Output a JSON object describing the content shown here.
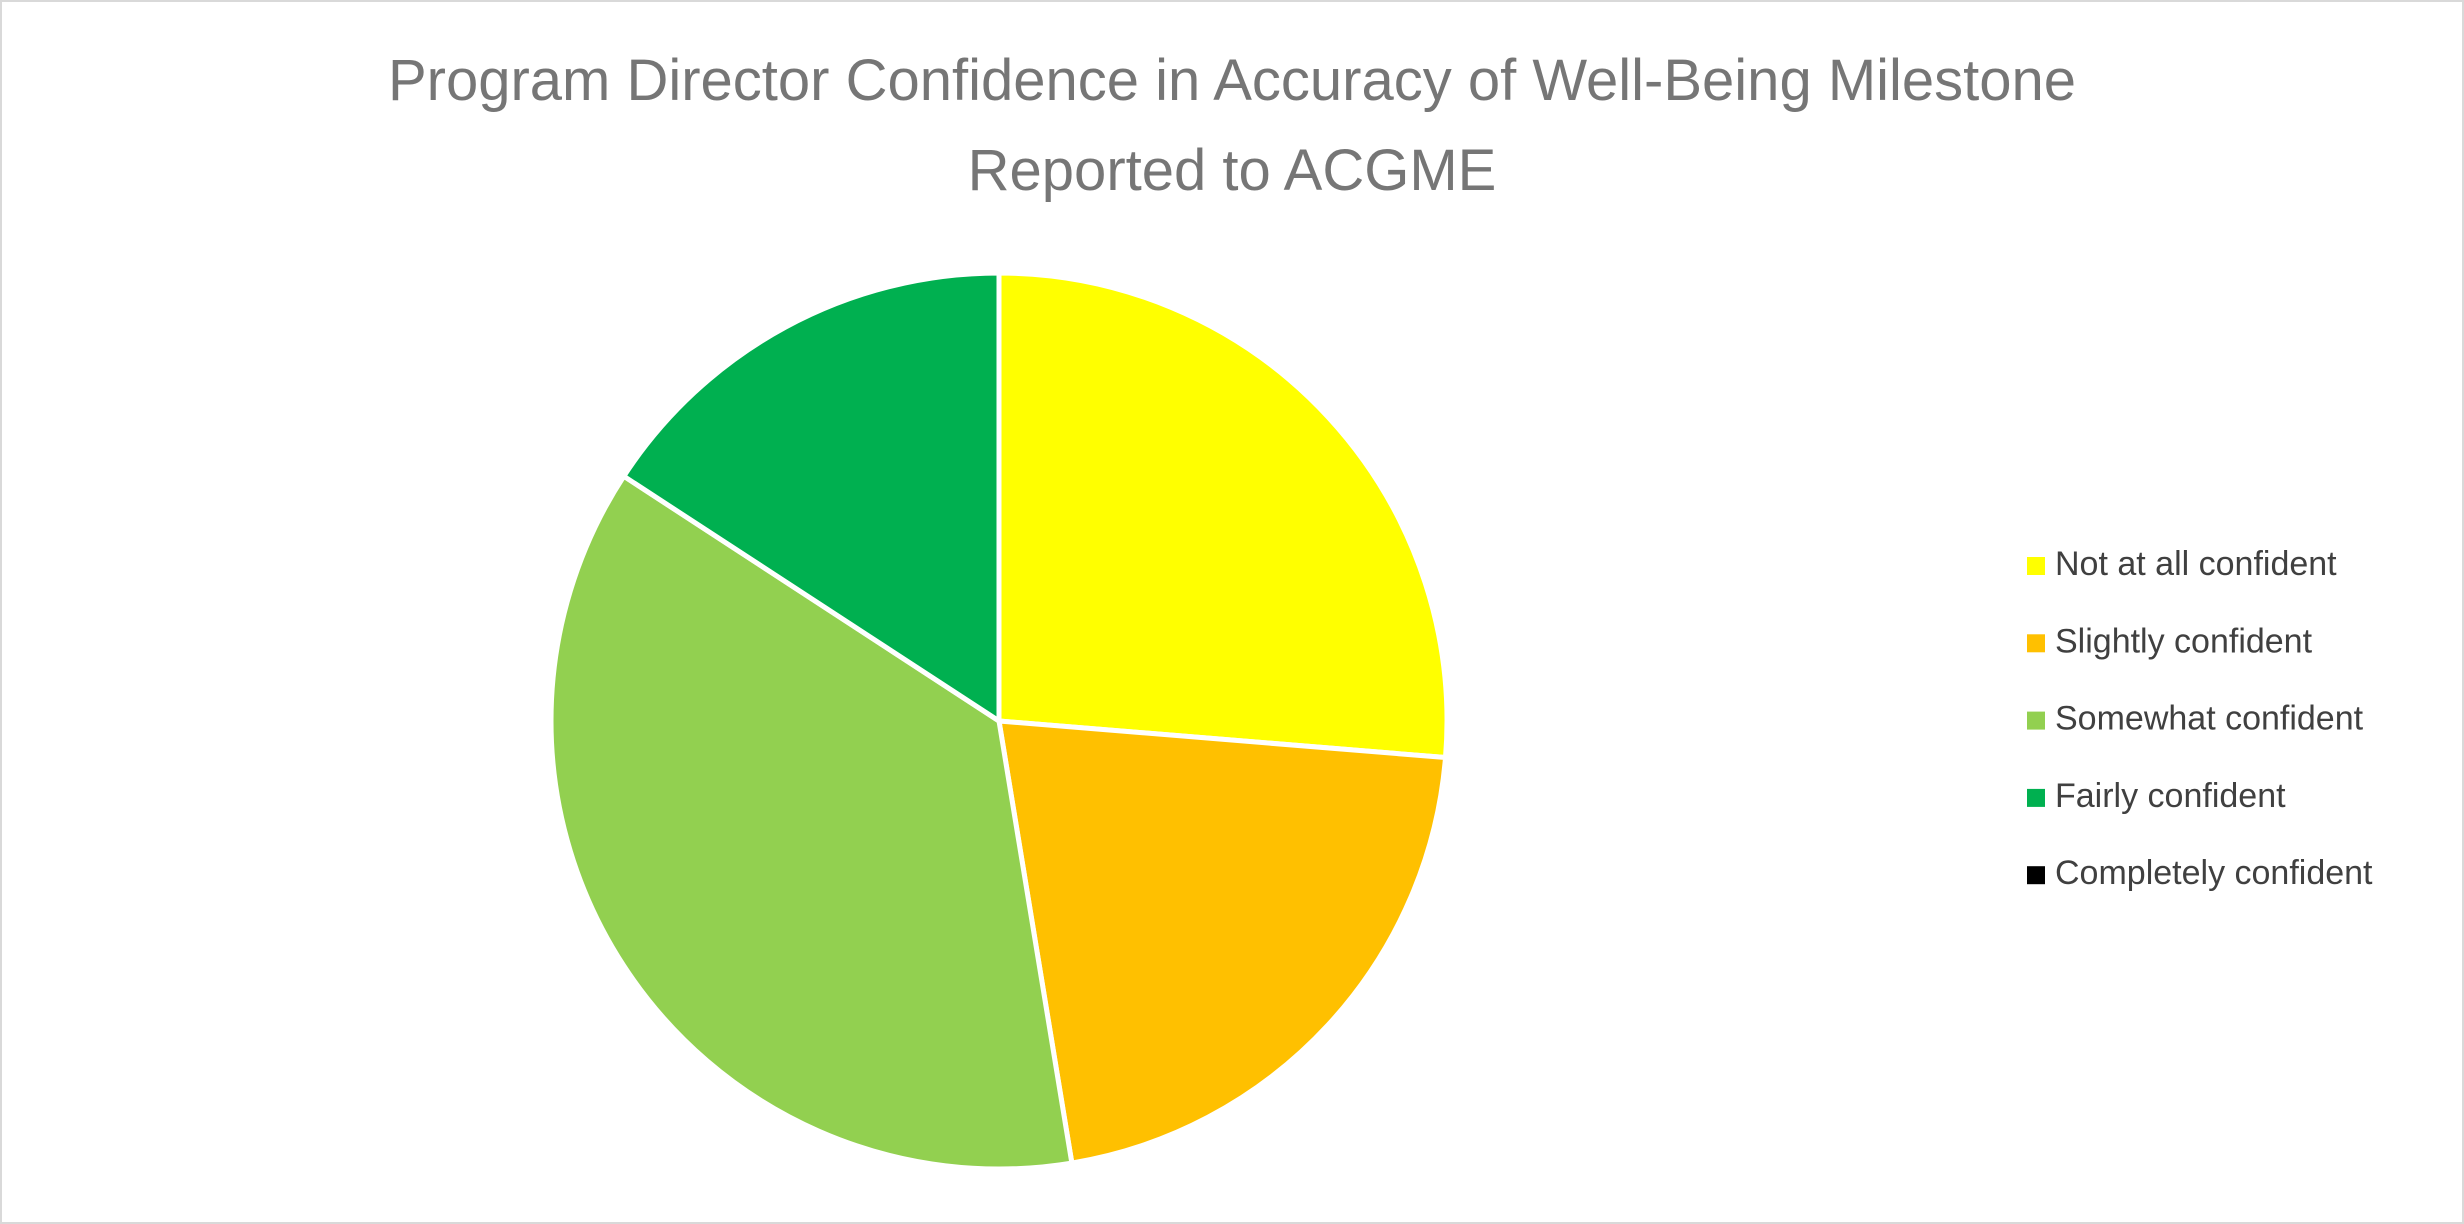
{
  "chart_data": {
    "type": "pie",
    "title": [
      "Program Director Confidence in Accuracy of Well-Being Milestone",
      "Reported to ACGME"
    ],
    "categories": [
      "Not at all confident",
      "Slightly confident",
      "Somewhat confident",
      "Fairly confident",
      "Completely confident"
    ],
    "values": [
      26.3,
      21.1,
      36.8,
      15.8,
      0
    ],
    "colors": [
      "#ffff00",
      "#ffc000",
      "#92d050",
      "#00b050",
      "#000000"
    ],
    "legend": "right"
  }
}
